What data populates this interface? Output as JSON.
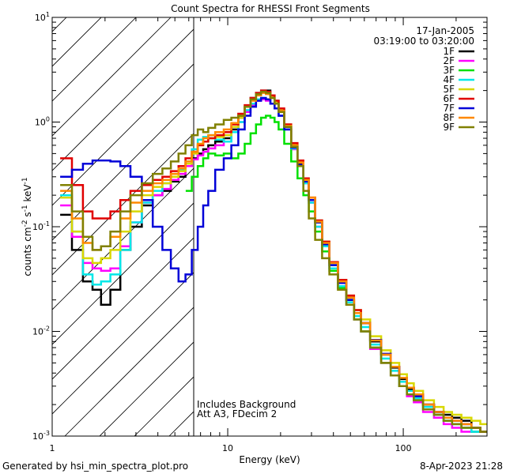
{
  "chart_data": {
    "type": "line",
    "title": "Count Spectra for RHESSI Front Segments",
    "xlabel": "Energy (keV)",
    "ylabel_main": "counts cm",
    "ylabel_units": [
      "-2",
      "s",
      "-1",
      "keV",
      "-1"
    ],
    "x_scale": "log",
    "y_scale": "log",
    "xlim": [
      1,
      300
    ],
    "ylim": [
      0.001,
      10
    ],
    "x_ticks": [
      {
        "value": 1,
        "label": "1"
      },
      {
        "value": 10,
        "label": "10"
      },
      {
        "value": 100,
        "label": "100"
      }
    ],
    "y_ticks": [
      {
        "value": 0.001,
        "base": "10",
        "exp": "-3"
      },
      {
        "value": 0.01,
        "base": "10",
        "exp": "-2"
      },
      {
        "value": 0.1,
        "base": "10",
        "exp": "-1"
      },
      {
        "value": 1,
        "base": "10",
        "exp": "0"
      },
      {
        "value": 10,
        "base": "10",
        "exp": "1"
      }
    ],
    "date": "17-Jan-2005",
    "time_range": "03:19:00 to 03:20:00",
    "shaded_region": {
      "x_min": 1,
      "x_max": 6
    },
    "annotations": [
      "Includes Background",
      "Att A3, FDecim 2"
    ],
    "footer_left": "Generated by hsi_min_spectra_plot.pro",
    "footer_right": "8-Apr-2023 21:28",
    "series": [
      {
        "name": "1F",
        "color": "#000000",
        "x": [
          1.2,
          1.4,
          1.6,
          1.8,
          2.0,
          2.3,
          2.6,
          3.0,
          3.5,
          4,
          4.5,
          5,
          5.5,
          6,
          6.5,
          7,
          7.5,
          8,
          9,
          10,
          11,
          12,
          13,
          14,
          15,
          16,
          17,
          18,
          19,
          20,
          22,
          24,
          26,
          28,
          30,
          33,
          36,
          40,
          45,
          50,
          55,
          60,
          70,
          80,
          90,
          100,
          110,
          120,
          140,
          160,
          180,
          200,
          230,
          260,
          290
        ],
        "y": [
          0.13,
          0.06,
          0.03,
          0.025,
          0.018,
          0.025,
          0.06,
          0.1,
          0.16,
          0.2,
          0.22,
          0.27,
          0.3,
          0.38,
          0.45,
          0.5,
          0.55,
          0.6,
          0.65,
          0.7,
          0.85,
          1.1,
          1.4,
          1.7,
          1.9,
          2.0,
          2.0,
          1.8,
          1.6,
          1.3,
          0.9,
          0.6,
          0.4,
          0.27,
          0.18,
          0.11,
          0.07,
          0.045,
          0.03,
          0.02,
          0.015,
          0.012,
          0.008,
          0.006,
          0.0045,
          0.0035,
          0.0028,
          0.0025,
          0.002,
          0.0017,
          0.0016,
          0.0015,
          0.0014,
          0.0012,
          0.0011
        ]
      },
      {
        "name": "2F",
        "color": "#ff00ff",
        "x": [
          1.2,
          1.4,
          1.6,
          1.8,
          2.0,
          2.3,
          2.6,
          3.0,
          3.5,
          4,
          4.5,
          5,
          5.5,
          6,
          6.5,
          7,
          7.5,
          8,
          9,
          10,
          11,
          12,
          13,
          14,
          15,
          16,
          17,
          18,
          19,
          20,
          22,
          24,
          26,
          28,
          30,
          33,
          36,
          40,
          45,
          50,
          55,
          60,
          70,
          80,
          90,
          100,
          110,
          120,
          140,
          160,
          180,
          200,
          230,
          260,
          290
        ],
        "y": [
          0.16,
          0.08,
          0.045,
          0.04,
          0.038,
          0.04,
          0.065,
          0.11,
          0.17,
          0.2,
          0.23,
          0.28,
          0.32,
          0.38,
          0.44,
          0.48,
          0.52,
          0.56,
          0.6,
          0.65,
          0.8,
          1.0,
          1.25,
          1.45,
          1.6,
          1.65,
          1.6,
          1.5,
          1.35,
          1.15,
          0.85,
          0.55,
          0.38,
          0.26,
          0.17,
          0.1,
          0.065,
          0.04,
          0.026,
          0.018,
          0.013,
          0.01,
          0.0068,
          0.005,
          0.0038,
          0.003,
          0.0024,
          0.0021,
          0.0017,
          0.0015,
          0.0013,
          0.0012,
          0.0011,
          0.0011,
          0.0011
        ]
      },
      {
        "name": "3F",
        "color": "#00e000",
        "x": [
          6,
          6.5,
          7,
          7.5,
          8,
          9,
          10,
          11,
          12,
          13,
          14,
          15,
          16,
          17,
          18,
          19,
          20,
          22,
          24,
          26,
          28,
          30,
          33,
          36,
          40,
          45,
          50,
          55,
          60,
          70,
          80,
          90,
          100,
          110,
          120,
          140,
          160,
          180,
          200,
          230,
          260,
          290
        ],
        "y": [
          0.22,
          0.3,
          0.38,
          0.45,
          0.5,
          0.48,
          0.5,
          0.45,
          0.5,
          0.62,
          0.78,
          0.95,
          1.1,
          1.15,
          1.1,
          1.0,
          0.85,
          0.62,
          0.42,
          0.29,
          0.2,
          0.14,
          0.09,
          0.058,
          0.038,
          0.026,
          0.018,
          0.013,
          0.01,
          0.007,
          0.005,
          0.0038,
          0.003,
          0.0025,
          0.0022,
          0.0018,
          0.0016,
          0.0014,
          0.0013,
          0.0012,
          0.0011,
          0.0011
        ]
      },
      {
        "name": "4F",
        "color": "#00e8e8",
        "x": [
          1.2,
          1.4,
          1.6,
          1.8,
          2.0,
          2.3,
          2.6,
          3.0,
          3.5,
          4,
          4.5,
          5,
          5.5,
          6,
          6.5,
          7,
          7.5,
          8,
          9,
          10,
          11,
          12,
          13,
          14,
          15,
          16,
          17,
          18,
          19,
          20,
          22,
          24,
          26,
          28,
          30,
          33,
          36,
          40,
          45,
          50,
          55,
          60,
          70,
          80,
          90,
          100,
          110,
          120,
          140,
          160,
          180,
          200,
          230,
          260,
          290
        ],
        "y": [
          0.2,
          0.09,
          0.035,
          0.028,
          0.03,
          0.035,
          0.06,
          0.11,
          0.17,
          0.22,
          0.26,
          0.3,
          0.35,
          0.42,
          0.55,
          0.68,
          0.72,
          0.75,
          0.68,
          0.65,
          0.8,
          1.0,
          1.3,
          1.5,
          1.65,
          1.7,
          1.65,
          1.5,
          1.35,
          1.15,
          0.85,
          0.56,
          0.38,
          0.26,
          0.17,
          0.1,
          0.065,
          0.04,
          0.027,
          0.019,
          0.014,
          0.011,
          0.0075,
          0.0055,
          0.0042,
          0.0033,
          0.0027,
          0.0023,
          0.0019,
          0.0016,
          0.0014,
          0.0013,
          0.0012,
          0.0011,
          0.0011
        ]
      },
      {
        "name": "5F",
        "color": "#d8d800",
        "x": [
          1.2,
          1.4,
          1.6,
          1.8,
          2.0,
          2.3,
          2.6,
          3.0,
          3.5,
          4,
          4.5,
          5,
          5.5,
          6,
          6.5,
          7,
          7.5,
          8,
          9,
          10,
          11,
          12,
          13,
          14,
          15,
          16,
          17,
          18,
          19,
          20,
          22,
          24,
          26,
          28,
          30,
          33,
          36,
          40,
          45,
          50,
          55,
          60,
          70,
          80,
          90,
          100,
          110,
          120,
          140,
          160,
          180,
          200,
          230,
          260,
          290
        ],
        "y": [
          0.19,
          0.09,
          0.05,
          0.045,
          0.05,
          0.06,
          0.09,
          0.14,
          0.2,
          0.24,
          0.26,
          0.3,
          0.34,
          0.4,
          0.5,
          0.6,
          0.65,
          0.7,
          0.72,
          0.75,
          0.9,
          1.1,
          1.4,
          1.65,
          1.85,
          1.95,
          1.9,
          1.75,
          1.55,
          1.3,
          0.95,
          0.62,
          0.42,
          0.28,
          0.19,
          0.115,
          0.072,
          0.046,
          0.031,
          0.022,
          0.016,
          0.013,
          0.009,
          0.0066,
          0.005,
          0.0039,
          0.0032,
          0.0027,
          0.0022,
          0.0019,
          0.0017,
          0.0016,
          0.0015,
          0.0014,
          0.0013
        ]
      },
      {
        "name": "6F",
        "color": "#e00000",
        "x": [
          1.2,
          1.4,
          1.6,
          1.8,
          2.0,
          2.3,
          2.6,
          3.0,
          3.5,
          4,
          4.5,
          5,
          5.5,
          6,
          6.5,
          7,
          7.5,
          8,
          9,
          10,
          11,
          12,
          13,
          14,
          15,
          16,
          17,
          18,
          19,
          20,
          22,
          24,
          26,
          28,
          30,
          33,
          36,
          40,
          45,
          50,
          55,
          60,
          70,
          80,
          90,
          100,
          110,
          120,
          140,
          160,
          180,
          200,
          230,
          260,
          290
        ],
        "y": [
          0.45,
          0.25,
          0.14,
          0.12,
          0.12,
          0.14,
          0.18,
          0.22,
          0.25,
          0.28,
          0.3,
          0.34,
          0.38,
          0.45,
          0.52,
          0.6,
          0.65,
          0.7,
          0.75,
          0.8,
          0.95,
          1.2,
          1.45,
          1.7,
          1.9,
          2.0,
          1.95,
          1.8,
          1.6,
          1.35,
          0.95,
          0.63,
          0.43,
          0.29,
          0.19,
          0.115,
          0.072,
          0.046,
          0.031,
          0.022,
          0.016,
          0.012,
          0.0082,
          0.006,
          0.0046,
          0.0036,
          0.0029,
          0.0025,
          0.002,
          0.0017,
          0.0015,
          0.0014,
          0.0013,
          0.0012,
          0.0011
        ]
      },
      {
        "name": "7F",
        "color": "#0000d8",
        "x": [
          1.2,
          1.4,
          1.6,
          1.8,
          2.0,
          2.3,
          2.6,
          3.0,
          3.5,
          4,
          4.5,
          5,
          5.5,
          6,
          6.5,
          7,
          7.5,
          8,
          9,
          10,
          11,
          12,
          13,
          14,
          15,
          16,
          17,
          18,
          19,
          20,
          22,
          24,
          26,
          28,
          30,
          33,
          36,
          40,
          45,
          50,
          55,
          60,
          70,
          80,
          90,
          100,
          110,
          120,
          140,
          160,
          180,
          200,
          230,
          260,
          290
        ],
        "y": [
          0.3,
          0.35,
          0.4,
          0.43,
          0.43,
          0.42,
          0.38,
          0.3,
          0.18,
          0.1,
          0.06,
          0.04,
          0.03,
          0.035,
          0.06,
          0.1,
          0.16,
          0.22,
          0.35,
          0.45,
          0.6,
          0.85,
          1.15,
          1.4,
          1.6,
          1.7,
          1.65,
          1.5,
          1.35,
          1.15,
          0.85,
          0.57,
          0.39,
          0.27,
          0.18,
          0.11,
          0.068,
          0.043,
          0.029,
          0.02,
          0.015,
          0.012,
          0.0083,
          0.0061,
          0.0046,
          0.0036,
          0.0029,
          0.0024,
          0.002,
          0.0017,
          0.0015,
          0.0014,
          0.0013,
          0.0012,
          0.0011
        ]
      },
      {
        "name": "8F",
        "color": "#ff8800",
        "x": [
          1.2,
          1.4,
          1.6,
          1.8,
          2.0,
          2.3,
          2.6,
          3.0,
          3.5,
          4,
          4.5,
          5,
          5.5,
          6,
          6.5,
          7,
          7.5,
          8,
          9,
          10,
          11,
          12,
          13,
          14,
          15,
          16,
          17,
          18,
          19,
          20,
          22,
          24,
          26,
          28,
          30,
          33,
          36,
          40,
          45,
          50,
          55,
          60,
          70,
          80,
          90,
          100,
          110,
          120,
          140,
          160,
          180,
          200,
          230,
          260,
          290
        ],
        "y": [
          0.22,
          0.12,
          0.07,
          0.06,
          0.065,
          0.08,
          0.12,
          0.17,
          0.22,
          0.26,
          0.28,
          0.32,
          0.36,
          0.42,
          0.52,
          0.62,
          0.7,
          0.75,
          0.8,
          0.85,
          0.98,
          1.15,
          1.4,
          1.6,
          1.8,
          1.9,
          1.85,
          1.7,
          1.5,
          1.28,
          0.92,
          0.6,
          0.41,
          0.28,
          0.19,
          0.112,
          0.07,
          0.045,
          0.03,
          0.021,
          0.015,
          0.012,
          0.0082,
          0.006,
          0.0046,
          0.0036,
          0.0029,
          0.0025,
          0.002,
          0.0017,
          0.0015,
          0.0014,
          0.0013,
          0.0012,
          0.0011
        ]
      },
      {
        "name": "9F",
        "color": "#808000",
        "x": [
          1.2,
          1.4,
          1.6,
          1.8,
          2.0,
          2.3,
          2.6,
          3.0,
          3.5,
          4,
          4.5,
          5,
          5.5,
          6,
          6.5,
          7,
          7.5,
          8,
          9,
          10,
          11,
          12,
          13,
          14,
          15,
          16,
          17,
          18,
          19,
          20,
          22,
          24,
          26,
          28,
          30,
          33,
          36,
          40,
          45,
          50,
          55,
          60,
          70,
          80,
          90,
          100,
          110,
          120,
          140,
          160,
          180,
          200,
          230,
          260,
          290
        ],
        "y": [
          0.25,
          0.14,
          0.08,
          0.06,
          0.065,
          0.09,
          0.14,
          0.2,
          0.26,
          0.32,
          0.36,
          0.42,
          0.5,
          0.6,
          0.75,
          0.85,
          0.8,
          0.88,
          0.95,
          1.05,
          1.1,
          1.15,
          1.4,
          1.65,
          1.85,
          1.95,
          1.9,
          1.7,
          1.5,
          1.25,
          0.9,
          0.58,
          0.38,
          0.22,
          0.12,
          0.075,
          0.05,
          0.035,
          0.025,
          0.018,
          0.013,
          0.01,
          0.007,
          0.005,
          0.0038,
          0.003,
          0.0025,
          0.0022,
          0.0018,
          0.0016,
          0.0014,
          0.0013,
          0.0012,
          0.0012,
          0.0011
        ]
      }
    ]
  }
}
